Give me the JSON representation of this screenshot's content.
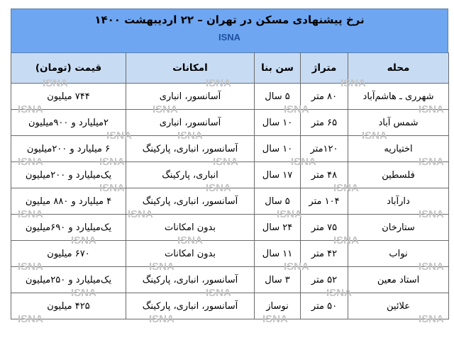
{
  "title": "نرخ پیشنهادی مسکن در تهران – ۲۲ اردیبهشت ۱۴۰۰",
  "source": "ISNA",
  "colors": {
    "banner": "#6ea6f2",
    "header": "#c7dbf3",
    "source_text": "#1e4f9e"
  },
  "headers": [
    "محله",
    "متراژ",
    "سن بنا",
    "امکانات",
    "قیمت (تومان)"
  ],
  "rows": [
    [
      "شهرری ـ هاشم‌آباد",
      "۸۰ متر",
      "۵ سال",
      "آسانسور، انباری",
      "۷۴۴ میلیون"
    ],
    [
      "شمس آباد",
      "۶۵ متر",
      "۱۰ سال",
      "آسانسور، انباری",
      "۲میلیارد و ۹۰۰میلیون"
    ],
    [
      "اختیاریه",
      "۱۲۰متر",
      "۱۰ سال",
      "آسانسور، انباری، پارکینگ",
      "۶ میلیارد و ۲۰۰میلیون"
    ],
    [
      "فلسطین",
      "۴۸ متر",
      "۱۷ سال",
      "انباری، پارکینگ",
      "یک‌میلیارد و ۲۰۰میلیون"
    ],
    [
      "دارآباد",
      "۱۰۴ متر",
      "۵ سال",
      "آسانسور، انباری، پارکینگ",
      "۴ میلیارد و ۸۸۰ میلیون"
    ],
    [
      "ستارخان",
      "۷۵ متر",
      "۲۴ سال",
      "بدون امکانات",
      "یک‌میلیارد و ۶۹۰میلیون"
    ],
    [
      "نواب",
      "۴۲ متر",
      "۱۱ سال",
      "بدون امکانات",
      "۶۷۰ میلیون"
    ],
    [
      "استاد معین",
      "۵۲ متر",
      "۳ سال",
      "آسانسور، انباری، پارکینگ",
      "یک‌میلیارد و ۲۵۰میلیون"
    ],
    [
      "علائین",
      "۵۰ متر",
      "نوساز",
      "آسانسور، انباری، پارکینگ",
      "۴۲۵ میلیون"
    ]
  ]
}
